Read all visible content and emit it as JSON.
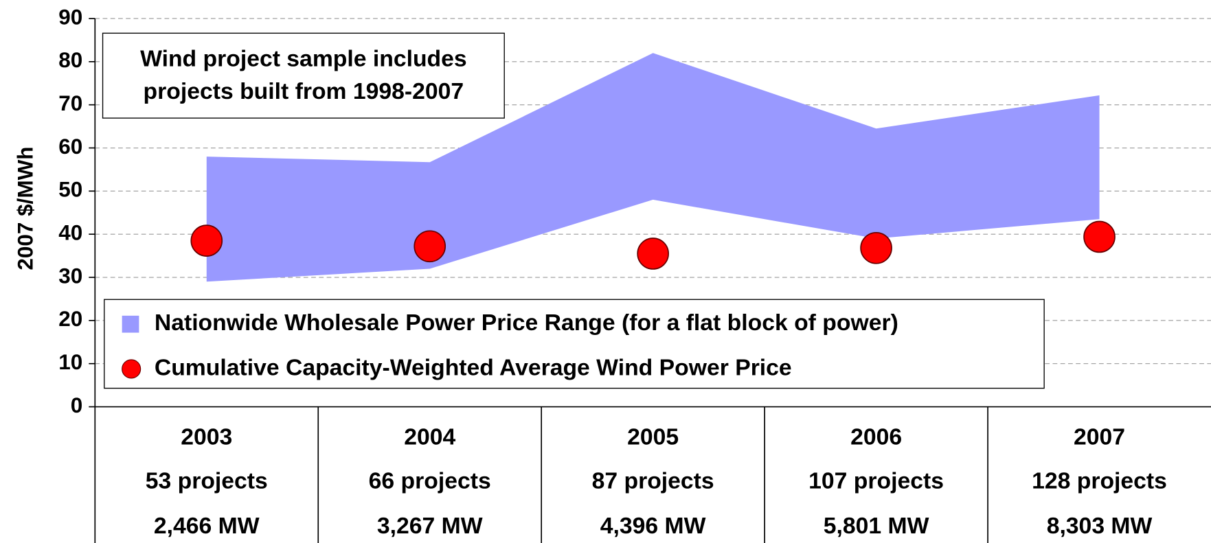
{
  "chart_data": {
    "type": "range_scatter",
    "ylabel": "2007 $/MWh",
    "annotation": [
      "Wind project sample includes",
      "projects built from 1998-2007"
    ],
    "categories": [
      "2003",
      "2004",
      "2005",
      "2006",
      "2007"
    ],
    "projects": [
      "53 projects",
      "66 projects",
      "87 projects",
      "107 projects",
      "128 projects"
    ],
    "capacity": [
      "2,466 MW",
      "3,267 MW",
      "4,396 MW",
      "5,801 MW",
      "8,303 MW"
    ],
    "series": [
      {
        "name": "Nationwide Wholesale Power Price Range (for a flat block of power)",
        "color": "#9999ff",
        "kind": "range",
        "low": [
          29,
          32,
          48,
          39,
          43.5
        ],
        "high": [
          58,
          56.7,
          82,
          64.5,
          72.2
        ]
      },
      {
        "name": "Cumulative Capacity-Weighted Average Wind Power Price",
        "color": "#ff0000",
        "kind": "dot",
        "values": [
          38.5,
          37.2,
          35.5,
          36.8,
          39.4
        ]
      }
    ],
    "ylim": [
      0,
      90
    ],
    "yticks": [
      0,
      10,
      20,
      30,
      40,
      50,
      60,
      70,
      80,
      90
    ],
    "grid": true
  }
}
